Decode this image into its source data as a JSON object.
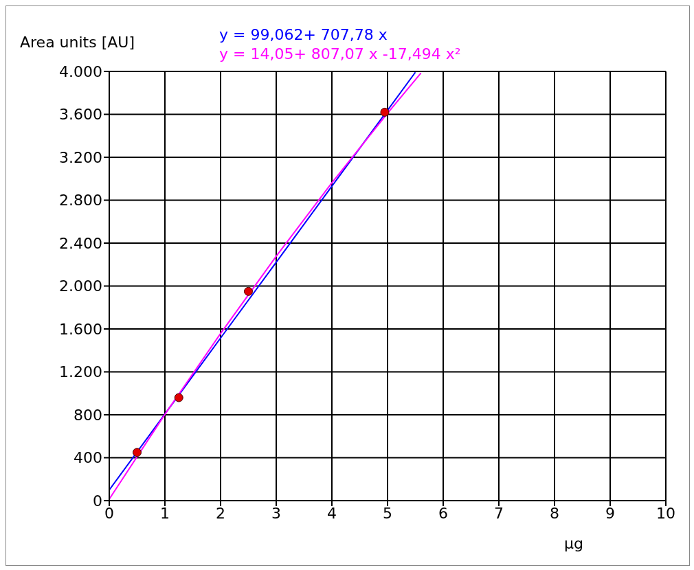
{
  "chart_data": {
    "type": "scatter",
    "ylabel": "Area units [AU]",
    "xlabel": "µg",
    "annotations": [
      "y = 99,062+ 707,78 x",
      "y = 14,05+ 807,07 x -17,494 x²"
    ],
    "series": [
      {
        "marker": "circle",
        "color": "#e00000",
        "x": [
          0.5,
          1.25,
          2.5,
          4.95
        ],
        "values": [
          450,
          960,
          1950,
          3620
        ]
      },
      {
        "type": "line",
        "marker": "none",
        "color": "#0000ff",
        "x": [
          0,
          1,
          2,
          3,
          4,
          5,
          5.5
        ],
        "values": [
          99,
          807,
          1515,
          2222,
          2930,
          3638,
          3992
        ]
      },
      {
        "type": "line",
        "marker": "none",
        "color": "#ff00ff",
        "x": [
          0,
          1,
          2,
          3,
          4,
          5,
          5.6
        ],
        "values": [
          14,
          804,
          1558,
          2278,
          2962,
          3611,
          3985
        ]
      }
    ],
    "grid": true,
    "xlim": [
      0,
      10
    ],
    "xticks": [
      0,
      1,
      2,
      3,
      4,
      5,
      6,
      7,
      8,
      9,
      10
    ],
    "ylim": [
      0,
      4000
    ],
    "yticks": [
      0,
      400,
      800,
      {
        "value": 1200,
        "label": "1.200"
      },
      {
        "value": 1600,
        "label": "1.600"
      },
      {
        "value": 2000,
        "label": "2.000"
      },
      {
        "value": 2400,
        "label": "2.400"
      },
      {
        "value": 2800,
        "label": "2.800"
      },
      {
        "value": 3200,
        "label": "3.200"
      },
      {
        "value": 3600,
        "label": "3.600"
      },
      {
        "value": 4000,
        "label": "4.000"
      }
    ]
  }
}
